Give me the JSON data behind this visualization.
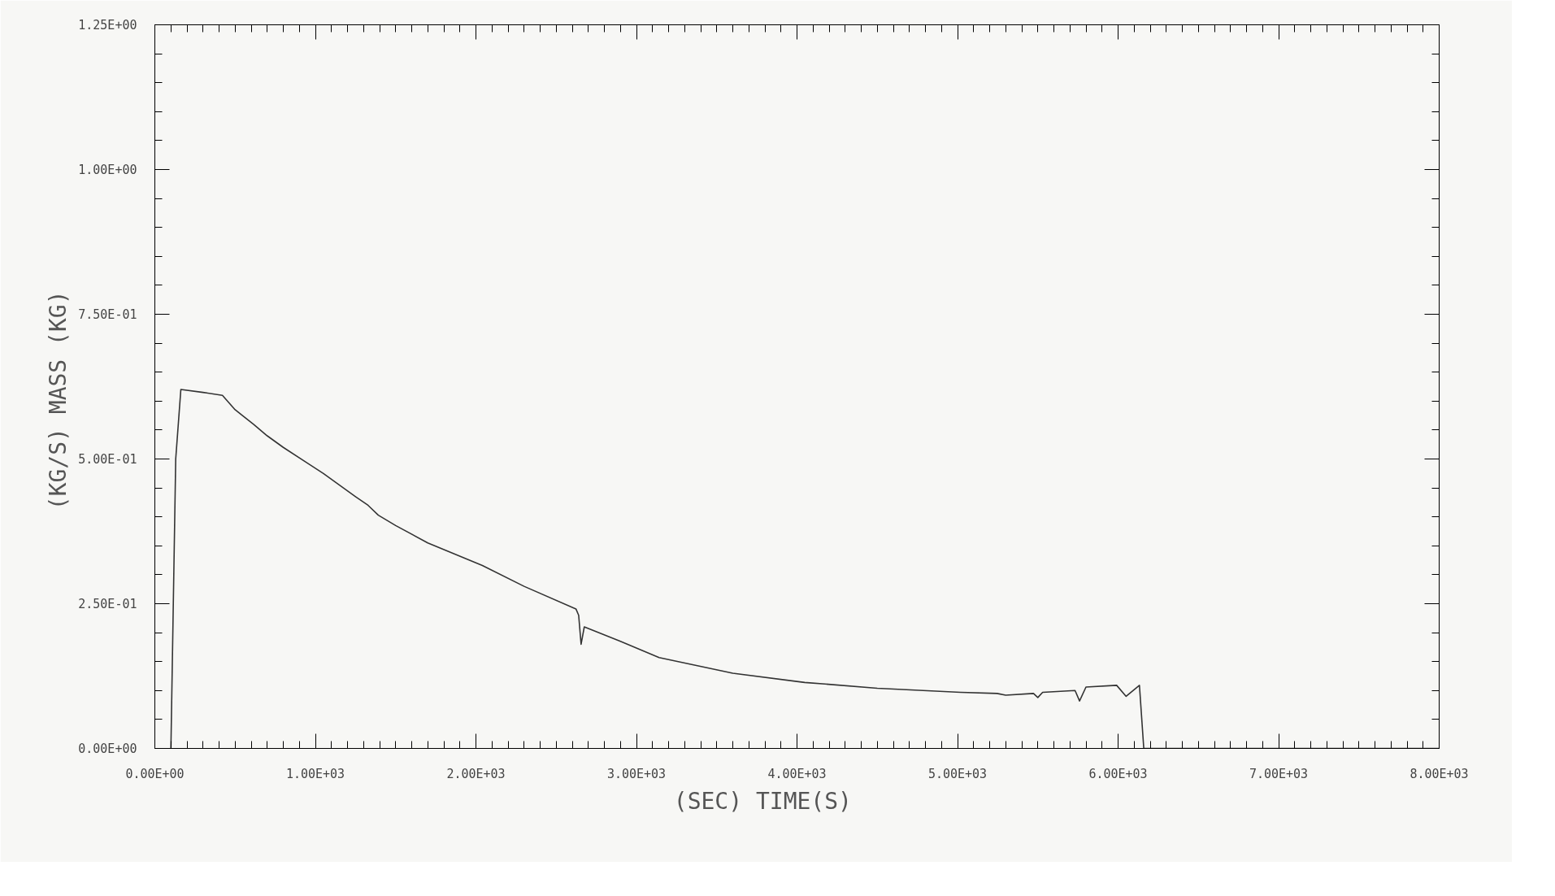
{
  "chart_data": {
    "type": "line",
    "xlabel": "(SEC)      TIME(S)",
    "ylabel": "(KG/S)   MASS (KG)",
    "xlim": [
      0,
      8000
    ],
    "ylim": [
      0,
      1.25
    ],
    "xticks": [
      {
        "value": 0,
        "label": "0.00E+00"
      },
      {
        "value": 1000,
        "label": "1.00E+03"
      },
      {
        "value": 2000,
        "label": "2.00E+03"
      },
      {
        "value": 3000,
        "label": "3.00E+03"
      },
      {
        "value": 4000,
        "label": "4.00E+03"
      },
      {
        "value": 5000,
        "label": "5.00E+03"
      },
      {
        "value": 6000,
        "label": "6.00E+03"
      },
      {
        "value": 7000,
        "label": "7.00E+03"
      },
      {
        "value": 8000,
        "label": "8.00E+03"
      }
    ],
    "yticks": [
      {
        "value": 0,
        "label": "0.00E+00"
      },
      {
        "value": 0.25,
        "label": "2.50E-01"
      },
      {
        "value": 0.5,
        "label": "5.00E-01"
      },
      {
        "value": 0.75,
        "label": "7.50E-01"
      },
      {
        "value": 1.0,
        "label": "1.00E+00"
      },
      {
        "value": 1.25,
        "label": "1.25E+00"
      }
    ],
    "grid": false,
    "marker": "none",
    "line_style": "solid",
    "series": [
      {
        "color": "#333333",
        "x": [
          100,
          130,
          162,
          300,
          421,
          500,
          615,
          700,
          800,
          939,
          1050,
          1150,
          1250,
          1328,
          1392,
          1500,
          1700,
          2040,
          2300,
          2623,
          2640,
          2655,
          2675,
          2900,
          3141,
          3600,
          4048,
          4500,
          5019,
          5246,
          5300,
          5473,
          5500,
          5530,
          5732,
          5760,
          5800,
          5991,
          6050,
          6133,
          6160,
          7000,
          8000
        ],
        "values": [
          0,
          0.5,
          0.62,
          0.615,
          0.61,
          0.585,
          0.56,
          0.54,
          0.52,
          0.495,
          0.475,
          0.455,
          0.435,
          0.42,
          0.403,
          0.385,
          0.355,
          0.316,
          0.28,
          0.241,
          0.23,
          0.18,
          0.21,
          0.185,
          0.157,
          0.13,
          0.114,
          0.104,
          0.097,
          0.095,
          0.092,
          0.095,
          0.088,
          0.097,
          0.1,
          0.082,
          0.106,
          0.109,
          0.09,
          0.109,
          0,
          0,
          0
        ]
      }
    ]
  }
}
